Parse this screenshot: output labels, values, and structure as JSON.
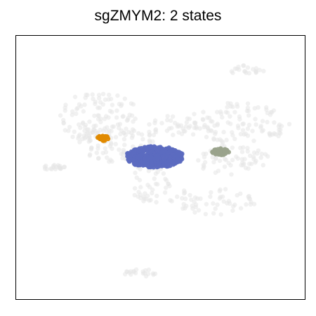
{
  "chart_data": {
    "type": "scatter",
    "title": "sgZMYM2: 2 states",
    "xlabel": "",
    "ylabel": "",
    "axis_ticks": false,
    "grid": false,
    "legend": "none",
    "background_color": "#e5e5e5",
    "background_regions": [
      {
        "name": "left lobe",
        "center": [
          0.29,
          0.69
        ],
        "radius": [
          0.14,
          0.1
        ]
      },
      {
        "name": "left lobe body",
        "center": [
          0.35,
          0.61
        ],
        "radius": [
          0.14,
          0.09
        ]
      },
      {
        "name": "stalk",
        "center": [
          0.47,
          0.49
        ],
        "radius": [
          0.06,
          0.08
        ]
      },
      {
        "name": "bridge",
        "center": [
          0.58,
          0.66
        ],
        "radius": [
          0.12,
          0.04
        ]
      },
      {
        "name": "right lobe",
        "center": [
          0.77,
          0.67
        ],
        "radius": [
          0.18,
          0.08
        ]
      },
      {
        "name": "right lower",
        "center": [
          0.75,
          0.53
        ],
        "radius": [
          0.13,
          0.06
        ]
      },
      {
        "name": "right arm",
        "center": [
          0.69,
          0.37
        ],
        "radius": [
          0.14,
          0.05
        ]
      },
      {
        "name": "lower left arm",
        "center": [
          0.5,
          0.4
        ],
        "radius": [
          0.11,
          0.04
        ]
      },
      {
        "name": "left islet",
        "center": [
          0.13,
          0.5
        ],
        "radius": [
          0.04,
          0.01
        ]
      },
      {
        "name": "top right islet",
        "center": [
          0.8,
          0.87
        ],
        "radius": [
          0.06,
          0.02
        ]
      },
      {
        "name": "bottom islet",
        "center": [
          0.43,
          0.1
        ],
        "radius": [
          0.06,
          0.015
        ]
      }
    ],
    "highlight_groups": [
      {
        "color": "#5c6bc0",
        "center": [
          0.48,
          0.54
        ],
        "radius": [
          0.1,
          0.04
        ]
      },
      {
        "color": "#e08a00",
        "center": [
          0.3,
          0.61
        ],
        "radius": [
          0.02,
          0.012
        ]
      },
      {
        "color": "#9aa38c",
        "center": [
          0.71,
          0.56
        ],
        "radius": [
          0.03,
          0.012
        ]
      }
    ],
    "xlim": [
      0,
      1
    ],
    "ylim": [
      0,
      1
    ]
  }
}
